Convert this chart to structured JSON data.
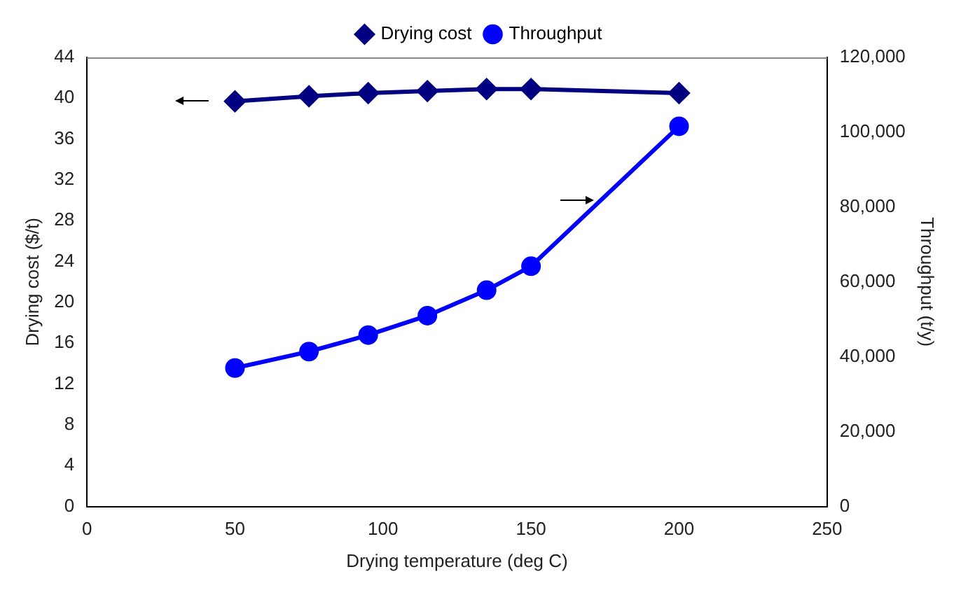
{
  "chart_data": {
    "type": "line",
    "xlabel": "Drying temperature (deg C)",
    "ylabel": "Drying cost ($/t)",
    "y2label": "Throughput (t/y)",
    "x": [
      50,
      75,
      95,
      115,
      135,
      150,
      200
    ],
    "series": [
      {
        "name": "Drying cost",
        "color": "#000080",
        "marker": "diamond",
        "values": [
          39.7,
          40.2,
          40.5,
          40.7,
          40.9,
          40.9,
          40.5
        ]
      },
      {
        "name": "Throughput",
        "color": "#0000ff",
        "marker": "circle",
        "axis": "y2",
        "values": [
          37000,
          41400,
          45800,
          51000,
          57800,
          64200,
          101600
        ]
      }
    ],
    "xlim": [
      0,
      250
    ],
    "xticks": [
      0,
      50,
      100,
      150,
      200,
      250
    ],
    "ylim": [
      0,
      44
    ],
    "yticks": [
      0,
      4,
      8,
      12,
      16,
      20,
      24,
      28,
      32,
      36,
      40,
      44
    ],
    "y2lim": [
      0,
      120000
    ],
    "y2ticks": [
      0,
      {
        "value": 20000,
        "label": "20,000"
      },
      {
        "value": 40000,
        "label": "40,000"
      },
      {
        "value": 60000,
        "label": "60,000"
      },
      {
        "value": 80000,
        "label": "80,000"
      },
      {
        "value": 100000,
        "label": "100,000"
      },
      {
        "value": 120000,
        "label": "120,000"
      }
    ],
    "grid": false,
    "legend": "top",
    "line_style": "solid"
  }
}
